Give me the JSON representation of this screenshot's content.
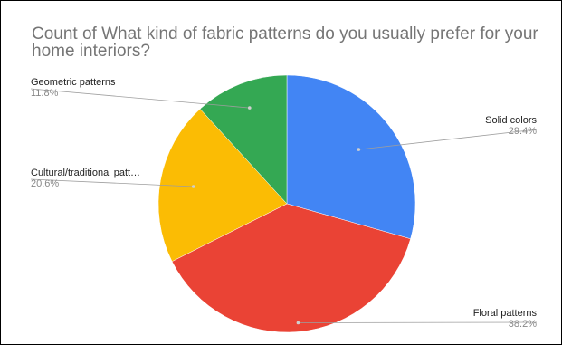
{
  "chart_data": {
    "type": "pie",
    "title": "Count of What kind of fabric patterns do you usually prefer for your home interiors?",
    "slices": [
      {
        "label": "Solid colors",
        "percent_label": "29.4%",
        "value": 29.4,
        "color": "#4285f4"
      },
      {
        "label": "Floral patterns",
        "percent_label": "38.2%",
        "value": 38.2,
        "color": "#ea4335"
      },
      {
        "label": "Cultural/traditional patt…",
        "percent_label": "20.6%",
        "value": 20.6,
        "color": "#fbbc04"
      },
      {
        "label": "Geometric patterns",
        "percent_label": "11.8%",
        "value": 11.8,
        "color": "#34a853"
      }
    ],
    "start_angle": "12 o'clock",
    "direction": "clockwise",
    "legend": "none"
  }
}
